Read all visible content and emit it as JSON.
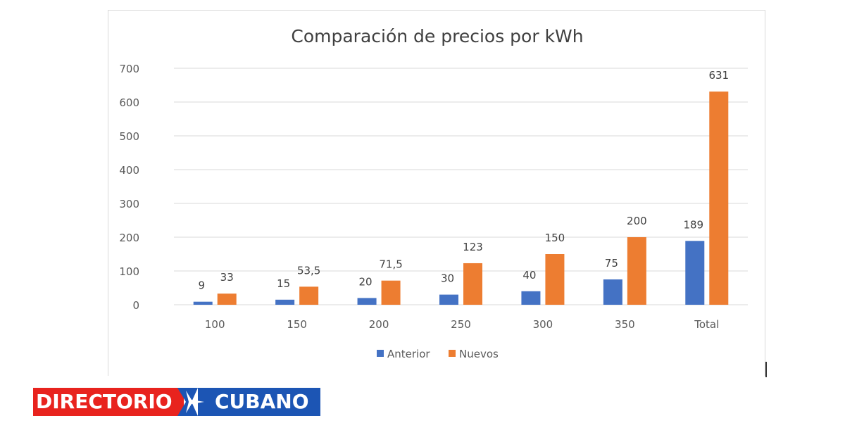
{
  "chart_data": {
    "type": "bar",
    "title": "Comparación de precios por kWh",
    "xlabel": "",
    "ylabel": "",
    "categories": [
      "100",
      "150",
      "200",
      "250",
      "300",
      "350",
      "Total"
    ],
    "series": [
      {
        "name": "Anterior",
        "color": "#4472c4",
        "values": [
          9,
          15,
          20,
          30,
          40,
          75,
          189
        ],
        "labels": [
          "9",
          "15",
          "20",
          "30",
          "40",
          "75",
          "189"
        ]
      },
      {
        "name": "Nuevos",
        "color": "#ed7d31",
        "values": [
          33,
          53.5,
          71.5,
          123,
          150,
          200,
          631
        ],
        "labels": [
          "33",
          "53,5",
          "71,5",
          "123",
          "150",
          "200",
          "631"
        ]
      }
    ],
    "ylim": [
      0,
      700
    ],
    "yticks": [
      0,
      100,
      200,
      300,
      400,
      500,
      600,
      700
    ],
    "ytick_labels": [
      "0",
      "100",
      "200",
      "300",
      "400",
      "500",
      "600",
      "700"
    ],
    "grid": true,
    "legend": "bottom"
  },
  "logo": {
    "left_text": "DIRECTORIO",
    "right_text": "CUBANO",
    "red": "#e8231e",
    "blue": "#1c55b4"
  }
}
